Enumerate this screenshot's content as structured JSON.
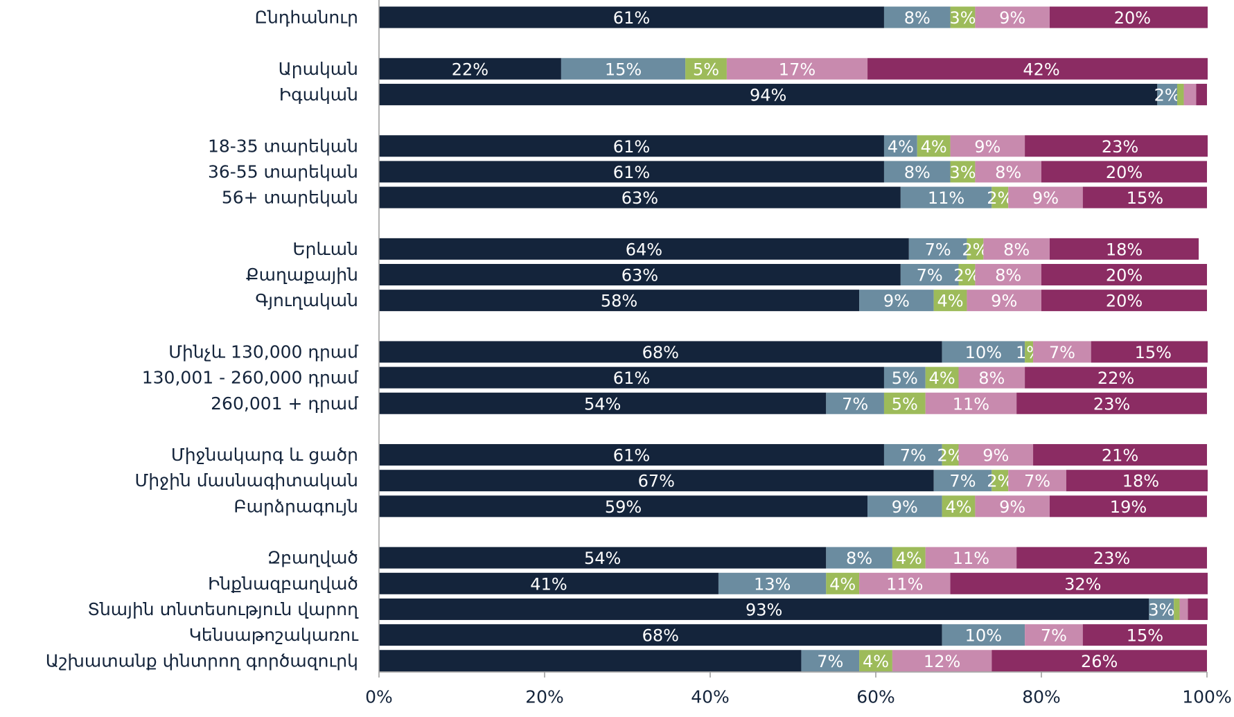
{
  "chart_data": {
    "type": "stacked-bar-horizontal",
    "categories": [
      "Ընդհանուր",
      null,
      "Արական",
      "Իգական",
      null,
      "18-35 տարեկան",
      "36-55 տարեկան",
      "56+ տարեկան",
      null,
      "Երևան",
      "Քաղաքային",
      "Գյուղական",
      null,
      "Մինչև 130,000 դրամ",
      "130,001 - 260,000 դրամ",
      "260,001 + դրամ",
      null,
      "Միջնակարգ և ցածր",
      "Միջին մասնագիտական",
      "Բարձրագույն",
      null,
      "Զբաղված",
      "Ինքնազբաղված",
      "Տնային տնտեսություն վարող",
      "Կենսաթոշակառու",
      "Աշխատանք փնտրող գործազուրկ"
    ],
    "series": [
      {
        "color": "#14243b",
        "values": [
          61,
          null,
          22,
          94,
          null,
          61,
          61,
          63,
          null,
          64,
          63,
          58,
          null,
          68,
          61,
          54,
          null,
          61,
          67,
          59,
          null,
          54,
          41,
          93,
          68,
          51
        ],
        "value_labels": [
          "61%",
          null,
          "22%",
          "94%",
          null,
          "61%",
          "61%",
          "63%",
          null,
          "64%",
          "63%",
          "58%",
          null,
          "68%",
          "61%",
          "54%",
          null,
          "61%",
          "67%",
          "59%",
          null,
          "54%",
          "41%",
          "93%",
          "68%",
          null
        ]
      },
      {
        "color": "#6b8ca0",
        "values": [
          8,
          null,
          15,
          2.4,
          null,
          4,
          8,
          11,
          null,
          7,
          7,
          9,
          null,
          10,
          5,
          7,
          null,
          7,
          7,
          9,
          null,
          8,
          13,
          3,
          10,
          7
        ],
        "value_labels": [
          "8%",
          null,
          "15%",
          "2%",
          null,
          "4%",
          "8%",
          "11%",
          null,
          "7%",
          "7%",
          "9%",
          null,
          "10%",
          "5%",
          "7%",
          null,
          "7%",
          "7%",
          "9%",
          null,
          "8%",
          "13%",
          "3%",
          "10%",
          "7%"
        ]
      },
      {
        "color": "#9dbb5a",
        "values": [
          3,
          null,
          5,
          0.8,
          null,
          4,
          3,
          2,
          null,
          2,
          2,
          4,
          null,
          1,
          4,
          5,
          null,
          2,
          2,
          4,
          null,
          4,
          4,
          0.7,
          0,
          4
        ],
        "value_labels": [
          "3%",
          null,
          "5%",
          null,
          null,
          "4%",
          "3%",
          "2%",
          null,
          "2%",
          "2%",
          "4%",
          null,
          "1%",
          "4%",
          "5%",
          null,
          "2%",
          "2%",
          "4%",
          null,
          "4%",
          "4%",
          null,
          null,
          "4%"
        ]
      },
      {
        "color": "#c88aae",
        "values": [
          9,
          null,
          17,
          1.5,
          null,
          9,
          8,
          9,
          null,
          8,
          8,
          9,
          null,
          7,
          8,
          11,
          null,
          9,
          7,
          9,
          null,
          11,
          11,
          1,
          7,
          12
        ],
        "value_labels": [
          "9%",
          null,
          "17%",
          null,
          null,
          "9%",
          "8%",
          "9%",
          null,
          "8%",
          "8%",
          "9%",
          null,
          "7%",
          "8%",
          "11%",
          null,
          "9%",
          "7%",
          "9%",
          null,
          "11%",
          "11%",
          null,
          "7%",
          "12%"
        ]
      },
      {
        "color": "#8b2c63",
        "values": [
          20,
          null,
          42,
          1.3,
          null,
          23,
          20,
          15,
          null,
          18,
          20,
          20,
          null,
          15,
          22,
          23,
          null,
          21,
          18,
          19,
          null,
          23,
          32,
          2.4,
          15,
          26
        ],
        "value_labels": [
          "20%",
          null,
          "42%",
          null,
          null,
          "23%",
          "20%",
          "15%",
          null,
          "18%",
          "20%",
          "20%",
          null,
          "15%",
          "22%",
          "23%",
          null,
          "21%",
          "18%",
          "19%",
          null,
          "23%",
          "32%",
          null,
          "15%",
          "26%"
        ]
      }
    ],
    "xlim": [
      0,
      100
    ],
    "xticks": [
      {
        "value": 0,
        "label": "0%"
      },
      {
        "value": 20,
        "label": "20%"
      },
      {
        "value": 40,
        "label": "40%"
      },
      {
        "value": 60,
        "label": "60%"
      },
      {
        "value": 80,
        "label": "80%"
      },
      {
        "value": 100,
        "label": "100%"
      }
    ]
  }
}
